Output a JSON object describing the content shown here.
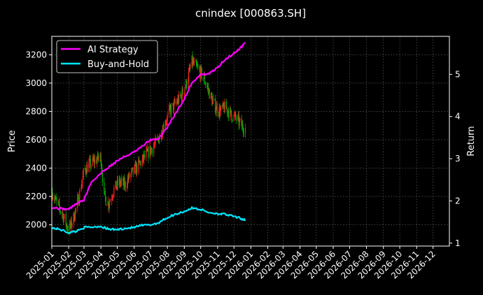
{
  "chart_data": {
    "type": "line",
    "title": "cnindex [000863.SH]",
    "xlabel": "",
    "ylabel": "Price",
    "y2label": "Return",
    "grid": true,
    "legend_position": "top-left",
    "colors": {
      "background": "#000000",
      "ai_strategy": "#ff00ff",
      "buy_and_hold": "#00e5ff",
      "candle_up": "#ff2020",
      "candle_down": "#00b000",
      "grid": "#555555",
      "text": "#ffffff"
    },
    "x_ticks": [
      "2025-01",
      "2025-02",
      "2025-03",
      "2025-04",
      "2025-05",
      "2025-06",
      "2025-07",
      "2025-08",
      "2025-09",
      "2025-10",
      "2025-11",
      "2025-12",
      "2026-01",
      "2026-02",
      "2026-03",
      "2026-04",
      "2026-05",
      "2026-06",
      "2026-07",
      "2026-08",
      "2026-09",
      "2026-10",
      "2026-11",
      "2026-12"
    ],
    "xlim": [
      "2025-01-01",
      "2026-12-31"
    ],
    "y_ticks": [
      2000,
      2200,
      2400,
      2600,
      2800,
      3000,
      3200
    ],
    "ylim": [
      1850,
      3330
    ],
    "y2_ticks": [
      1,
      2,
      3,
      4,
      5
    ],
    "y2lim": [
      0.93,
      5.9
    ],
    "legend": [
      "AI Strategy",
      "Buy-and-Hold"
    ],
    "price_series": {
      "name": "",
      "x": [
        "2025-01-02",
        "2025-01-10",
        "2025-01-20",
        "2025-02-01",
        "2025-02-10",
        "2025-02-20",
        "2025-03-01",
        "2025-03-10",
        "2025-03-20",
        "2025-04-01",
        "2025-04-07",
        "2025-04-15",
        "2025-04-25",
        "2025-05-05",
        "2025-05-15",
        "2025-05-25",
        "2025-06-05",
        "2025-06-15",
        "2025-06-25",
        "2025-07-05",
        "2025-07-15",
        "2025-07-25",
        "2025-08-05",
        "2025-08-15",
        "2025-08-25",
        "2025-09-05",
        "2025-09-15",
        "2025-09-25",
        "2025-10-05",
        "2025-10-15",
        "2025-10-25",
        "2025-11-05",
        "2025-11-15",
        "2025-11-25",
        "2025-12-05",
        "2025-12-15",
        "2025-12-22"
      ],
      "values": [
        2230,
        2150,
        2080,
        1960,
        2050,
        2200,
        2380,
        2420,
        2450,
        2480,
        2200,
        2150,
        2250,
        2300,
        2280,
        2350,
        2400,
        2450,
        2500,
        2550,
        2600,
        2700,
        2800,
        2850,
        2900,
        3000,
        3150,
        3100,
        3050,
        2950,
        2850,
        2800,
        2830,
        2780,
        2750,
        2700,
        2680
      ]
    },
    "series": [
      {
        "name": "AI Strategy",
        "x": [
          "2025-01-02",
          "2025-01-15",
          "2025-02-01",
          "2025-02-15",
          "2025-03-01",
          "2025-03-15",
          "2025-04-01",
          "2025-04-15",
          "2025-05-01",
          "2025-05-15",
          "2025-06-01",
          "2025-06-15",
          "2025-07-01",
          "2025-07-15",
          "2025-08-01",
          "2025-08-15",
          "2025-09-01",
          "2025-09-15",
          "2025-10-01",
          "2025-10-15",
          "2025-11-01",
          "2025-11-15",
          "2025-12-01",
          "2025-12-15",
          "2025-12-22"
        ],
        "values": [
          1.85,
          1.82,
          1.8,
          1.93,
          2.02,
          2.45,
          2.65,
          2.8,
          2.95,
          3.05,
          3.15,
          3.28,
          3.45,
          3.45,
          3.75,
          4.05,
          4.4,
          4.8,
          5.0,
          5.0,
          5.15,
          5.35,
          5.5,
          5.65,
          5.75
        ]
      },
      {
        "name": "Buy-and-Hold",
        "x": [
          "2025-01-02",
          "2025-01-15",
          "2025-02-01",
          "2025-02-15",
          "2025-03-01",
          "2025-03-15",
          "2025-04-01",
          "2025-04-15",
          "2025-05-01",
          "2025-05-15",
          "2025-06-01",
          "2025-06-15",
          "2025-07-01",
          "2025-07-15",
          "2025-08-01",
          "2025-08-15",
          "2025-09-01",
          "2025-09-15",
          "2025-10-01",
          "2025-10-15",
          "2025-11-01",
          "2025-11-15",
          "2025-12-01",
          "2025-12-15",
          "2025-12-22"
        ],
        "values": [
          1.36,
          1.33,
          1.25,
          1.28,
          1.37,
          1.38,
          1.4,
          1.33,
          1.32,
          1.35,
          1.37,
          1.42,
          1.43,
          1.48,
          1.6,
          1.68,
          1.75,
          1.83,
          1.8,
          1.73,
          1.7,
          1.68,
          1.63,
          1.58,
          1.55
        ]
      }
    ]
  }
}
